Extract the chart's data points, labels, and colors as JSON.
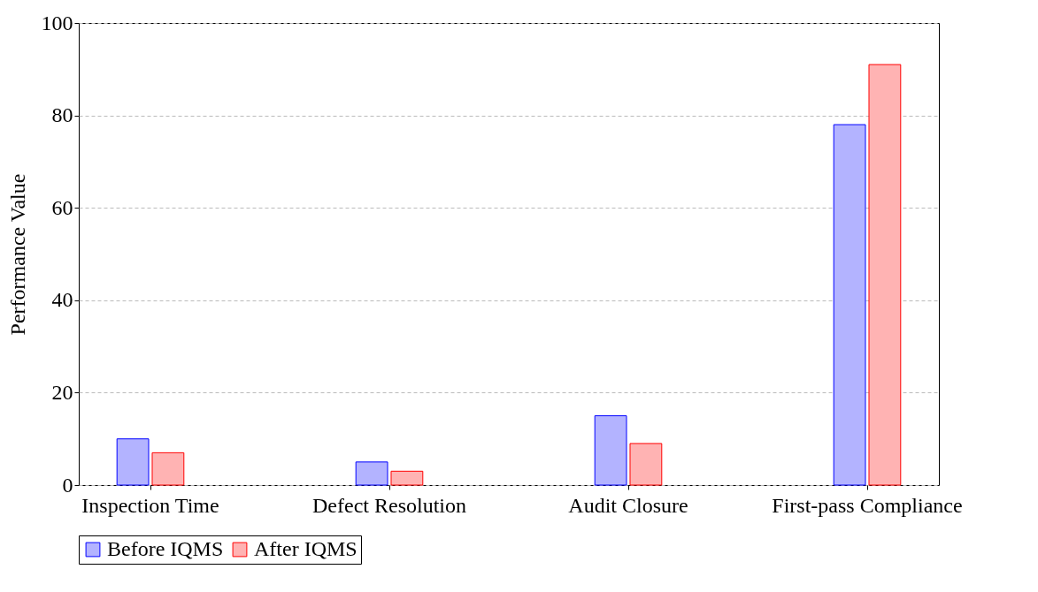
{
  "chart_data": {
    "type": "bar",
    "ylabel": "Performance Value",
    "categories": [
      "Inspection Time",
      "Defect Resolution",
      "Audit Closure",
      "First-pass Compliance"
    ],
    "series": [
      {
        "name": "Before IQMS",
        "color": "#b3b3ff",
        "values": [
          10,
          5,
          15,
          78
        ]
      },
      {
        "name": "After IQMS",
        "color": "#ffb3b3",
        "values": [
          7,
          3,
          9,
          91
        ]
      }
    ],
    "ylim": [
      0,
      100
    ],
    "yticks": [
      0,
      20,
      40,
      60,
      80,
      100
    ],
    "grid": "y",
    "legend": "bottom"
  }
}
